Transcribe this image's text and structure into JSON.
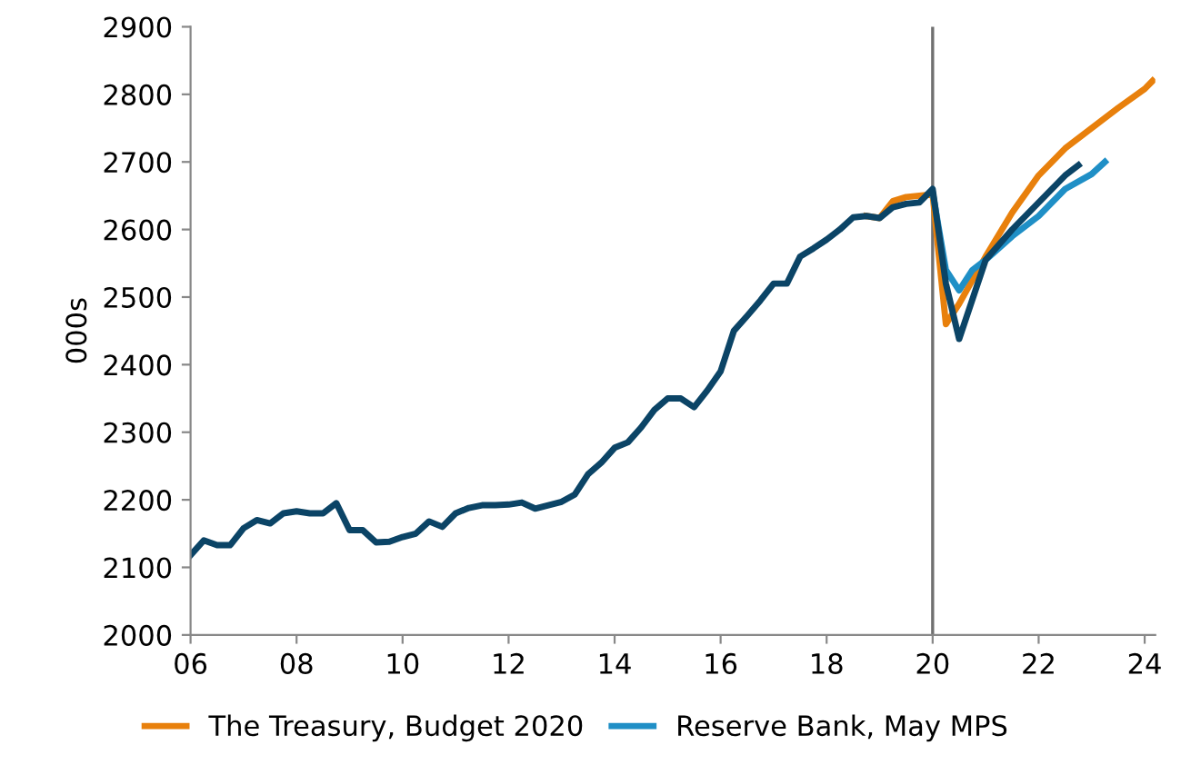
{
  "chart_data": {
    "type": "line",
    "ylabel": "000s",
    "xlim": [
      6,
      24.2
    ],
    "ylim": [
      2000,
      2900
    ],
    "xticks": [
      {
        "value": 6,
        "label": "06"
      },
      {
        "value": 8,
        "label": "08"
      },
      {
        "value": 10,
        "label": "10"
      },
      {
        "value": 12,
        "label": "12"
      },
      {
        "value": 14,
        "label": "14"
      },
      {
        "value": 16,
        "label": "16"
      },
      {
        "value": 18,
        "label": "18"
      },
      {
        "value": 20,
        "label": "20"
      },
      {
        "value": 22,
        "label": "22"
      },
      {
        "value": 24,
        "label": "24"
      }
    ],
    "yticks": [
      2000,
      2100,
      2200,
      2300,
      2400,
      2500,
      2600,
      2700,
      2800,
      2900
    ],
    "grid": false,
    "legend": "bottom",
    "marker": "none",
    "line_style": "solid",
    "ref_lines": [
      {
        "axis": "x",
        "value": 20,
        "color": "#707070"
      }
    ],
    "series": [
      {
        "name": "The Treasury, Budget 2020",
        "color": "#e8800c",
        "x": [
          18.75,
          19.0,
          19.25,
          19.5,
          19.75,
          20.0,
          20.25,
          20.5,
          21.0,
          21.5,
          22.0,
          22.5,
          23.0,
          23.5,
          24.0,
          24.15
        ],
        "values": [
          2620,
          2617,
          2642,
          2648,
          2650,
          2652,
          2460,
          2490,
          2560,
          2625,
          2680,
          2720,
          2750,
          2780,
          2808,
          2820
        ]
      },
      {
        "name": "Reserve Bank, May MPS",
        "color": "#1f8fc6",
        "x": [
          20.0,
          20.25,
          20.5,
          20.75,
          21.0,
          21.5,
          22.0,
          22.5,
          23.0,
          23.25
        ],
        "values": [
          2655,
          2540,
          2510,
          2540,
          2555,
          2590,
          2620,
          2660,
          2682,
          2700
        ]
      },
      {
        "color": "#0b4466",
        "x": [
          6.0,
          6.25,
          6.5,
          6.75,
          7.0,
          7.25,
          7.5,
          7.75,
          8.0,
          8.25,
          8.5,
          8.75,
          9.0,
          9.25,
          9.5,
          9.75,
          10.0,
          10.25,
          10.5,
          10.75,
          11.0,
          11.25,
          11.5,
          11.75,
          12.0,
          12.25,
          12.5,
          12.75,
          13.0,
          13.25,
          13.5,
          13.75,
          14.0,
          14.25,
          14.5,
          14.75,
          15.0,
          15.25,
          15.5,
          15.75,
          16.0,
          16.25,
          16.5,
          16.75,
          17.0,
          17.25,
          17.5,
          17.75,
          18.0,
          18.25,
          18.5,
          18.75,
          19.0,
          19.25,
          19.5,
          19.75,
          20.0,
          20.25,
          20.5,
          21.0,
          21.5,
          22.0,
          22.5,
          22.75
        ],
        "values": [
          2118,
          2140,
          2133,
          2133,
          2158,
          2170,
          2165,
          2180,
          2183,
          2180,
          2180,
          2195,
          2155,
          2155,
          2137,
          2138,
          2145,
          2150,
          2168,
          2160,
          2180,
          2188,
          2192,
          2192,
          2193,
          2196,
          2187,
          2192,
          2197,
          2208,
          2238,
          2255,
          2277,
          2285,
          2307,
          2333,
          2350,
          2350,
          2337,
          2362,
          2390,
          2450,
          2472,
          2495,
          2520,
          2520,
          2560,
          2572,
          2585,
          2600,
          2618,
          2620,
          2617,
          2633,
          2638,
          2640,
          2660,
          2520,
          2438,
          2555,
          2600,
          2640,
          2680,
          2695
        ]
      }
    ]
  }
}
